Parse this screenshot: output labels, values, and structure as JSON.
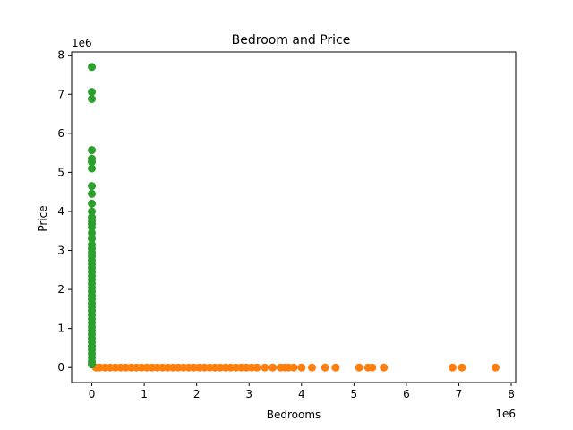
{
  "chart_data": {
    "type": "scatter",
    "title": "Bedroom and Price",
    "xlabel": "Bedrooms",
    "ylabel": "Price",
    "x_offset_text": "1e6",
    "y_offset_text": "1e6",
    "xlim": [
      -0.385,
      8.085
    ],
    "ylim": [
      -0.385,
      8.085
    ],
    "xticks": [
      0,
      1,
      2,
      3,
      4,
      5,
      6,
      7,
      8
    ],
    "yticks": [
      0,
      1,
      2,
      3,
      4,
      5,
      6,
      7,
      8
    ],
    "xtick_labels": [
      "0",
      "1",
      "2",
      "3",
      "4",
      "5",
      "6",
      "7",
      "8"
    ],
    "ytick_labels": [
      "0",
      "1",
      "2",
      "3",
      "4",
      "5",
      "6",
      "7",
      "8"
    ],
    "grid": false,
    "legend": "none",
    "colors": {
      "series_1": "#ff7f0e",
      "series_2": "#2ca02c"
    },
    "series": [
      {
        "x": [
          0.08,
          0.15,
          0.25,
          0.35,
          0.45,
          0.55,
          0.65,
          0.75,
          0.85,
          0.95,
          1.05,
          1.15,
          1.25,
          1.35,
          1.45,
          1.55,
          1.65,
          1.75,
          1.85,
          1.95,
          2.05,
          2.15,
          2.25,
          2.35,
          2.45,
          2.55,
          2.65,
          2.75,
          2.85,
          2.95,
          3.05,
          3.15,
          3.3,
          3.45,
          3.6,
          3.68,
          3.75,
          3.85,
          4.0,
          4.2,
          4.45,
          4.65,
          5.1,
          5.27,
          5.35,
          5.57,
          6.88,
          7.06,
          7.7
        ],
        "y": [
          0,
          0,
          0,
          0,
          0,
          0,
          0,
          0,
          0,
          0,
          0,
          0,
          0,
          0,
          0,
          0,
          0,
          0,
          0,
          0,
          0,
          0,
          0,
          0,
          0,
          0,
          0,
          0,
          0,
          0,
          0,
          0,
          0,
          0,
          0,
          0,
          0,
          0,
          0,
          0,
          0,
          0,
          0,
          0,
          0,
          0,
          0,
          0,
          0
        ]
      },
      {
        "x": [
          0,
          0,
          0,
          0,
          0,
          0,
          0,
          0,
          0,
          0,
          0,
          0,
          0,
          0,
          0,
          0,
          0,
          0,
          0,
          0,
          0,
          0,
          0,
          0,
          0,
          0,
          0,
          0,
          0,
          0,
          0,
          0,
          0,
          0,
          0,
          0,
          0,
          0,
          0,
          0,
          0,
          0,
          0,
          0,
          0,
          0,
          0,
          0,
          0
        ],
        "y": [
          0.08,
          0.15,
          0.25,
          0.35,
          0.45,
          0.55,
          0.65,
          0.75,
          0.85,
          0.95,
          1.05,
          1.15,
          1.25,
          1.35,
          1.45,
          1.55,
          1.65,
          1.75,
          1.85,
          1.95,
          2.05,
          2.15,
          2.25,
          2.35,
          2.45,
          2.55,
          2.65,
          2.75,
          2.85,
          2.95,
          3.05,
          3.15,
          3.3,
          3.45,
          3.6,
          3.68,
          3.75,
          3.85,
          4.0,
          4.2,
          4.45,
          4.65,
          5.1,
          5.27,
          5.35,
          5.57,
          6.88,
          7.06,
          7.7
        ]
      }
    ]
  }
}
